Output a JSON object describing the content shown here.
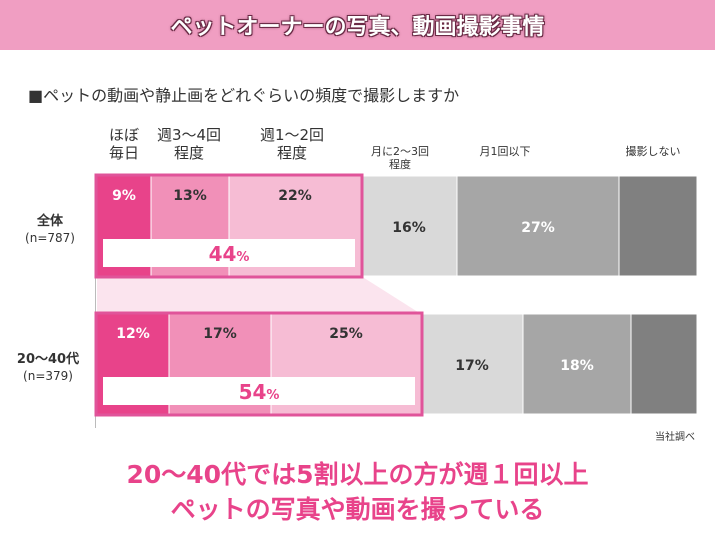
{
  "banner": {
    "title": "ペットオーナーの写真、動画撮影事情"
  },
  "question": "■ペットの動画や静止画をどれぐらいの頻度で撮影しますか",
  "columns": {
    "daily": [
      "ほぼ",
      "毎日"
    ],
    "weekly_3_4": [
      "週3〜4回",
      "程度"
    ],
    "weekly_1_2": [
      "週1〜2回",
      "程度"
    ],
    "monthly_2_3": [
      "月に2〜3回",
      "程度"
    ],
    "monthly_1_less": [
      "月1回以下"
    ],
    "never": [
      "撮影しない"
    ]
  },
  "rows": {
    "all": {
      "label": "全体",
      "n": "(n=787)"
    },
    "age20_40": {
      "label": "20〜40代",
      "n": "(n=379)"
    }
  },
  "source": "当社調べ",
  "conclusion": {
    "line1": "20〜40代では5割以上の方が週１回以上",
    "line2": "ペットの写真や動画を撮っている"
  },
  "colors": {
    "pink1": "#e8438a",
    "pink2": "#f190b8",
    "pink3": "#f6bcd4",
    "gray1": "#d9d9d9",
    "gray2": "#a6a6a6",
    "gray3": "#808080",
    "highlight": "#e0549a"
  },
  "chart_data": {
    "type": "bar",
    "orientation": "horizontal",
    "stacked": true,
    "categories": [
      "全体",
      "20〜40代"
    ],
    "series": [
      {
        "name": "ほぼ毎日",
        "values": [
          9,
          12
        ]
      },
      {
        "name": "週3〜4回程度",
        "values": [
          13,
          17
        ]
      },
      {
        "name": "週1〜2回程度",
        "values": [
          22,
          25
        ]
      },
      {
        "name": "月に2〜3回程度",
        "values": [
          16,
          17
        ]
      },
      {
        "name": "月1回以下",
        "values": [
          27,
          18
        ]
      },
      {
        "name": "撮影しない",
        "values": [
          13,
          11
        ]
      }
    ],
    "value_labels": [
      [
        "9%",
        "13%",
        "22%",
        "16%",
        "27%",
        ""
      ],
      [
        "12%",
        "17%",
        "25%",
        "17%",
        "18%",
        ""
      ]
    ],
    "weekly_totals": [
      44,
      54
    ],
    "weekly_total_labels": [
      "44",
      "54"
    ],
    "total_unit": "%"
  }
}
